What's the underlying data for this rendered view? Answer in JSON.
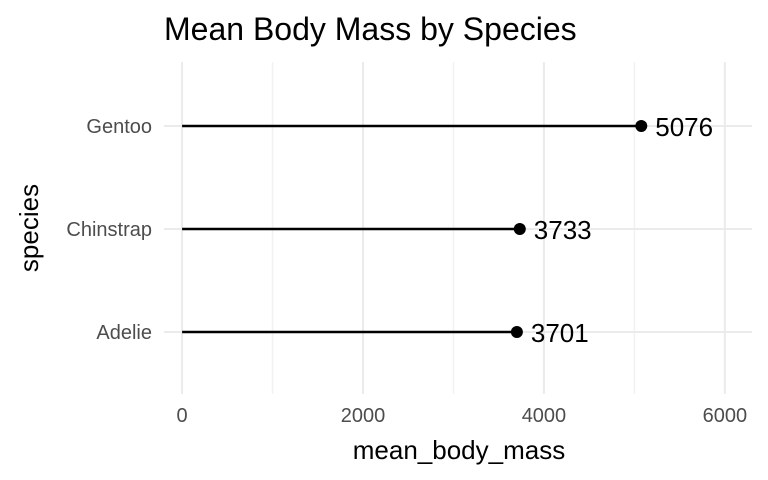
{
  "chart_data": {
    "type": "lollipop",
    "title": "Mean Body Mass by Species",
    "xlabel": "mean_body_mass",
    "ylabel": "species",
    "categories": [
      "Adelie",
      "Chinstrap",
      "Gentoo"
    ],
    "values": [
      3701,
      3733,
      5076
    ],
    "data_labels": [
      "3701",
      "3733",
      "5076"
    ],
    "xlim": [
      -200,
      6300
    ],
    "xticks": [
      0,
      2000,
      4000,
      6000
    ],
    "xtick_labels": [
      "0",
      "2000",
      "4000",
      "6000"
    ],
    "x_minor_ticks": [
      1000,
      3000,
      5000
    ],
    "grid": true,
    "legend": "none"
  }
}
